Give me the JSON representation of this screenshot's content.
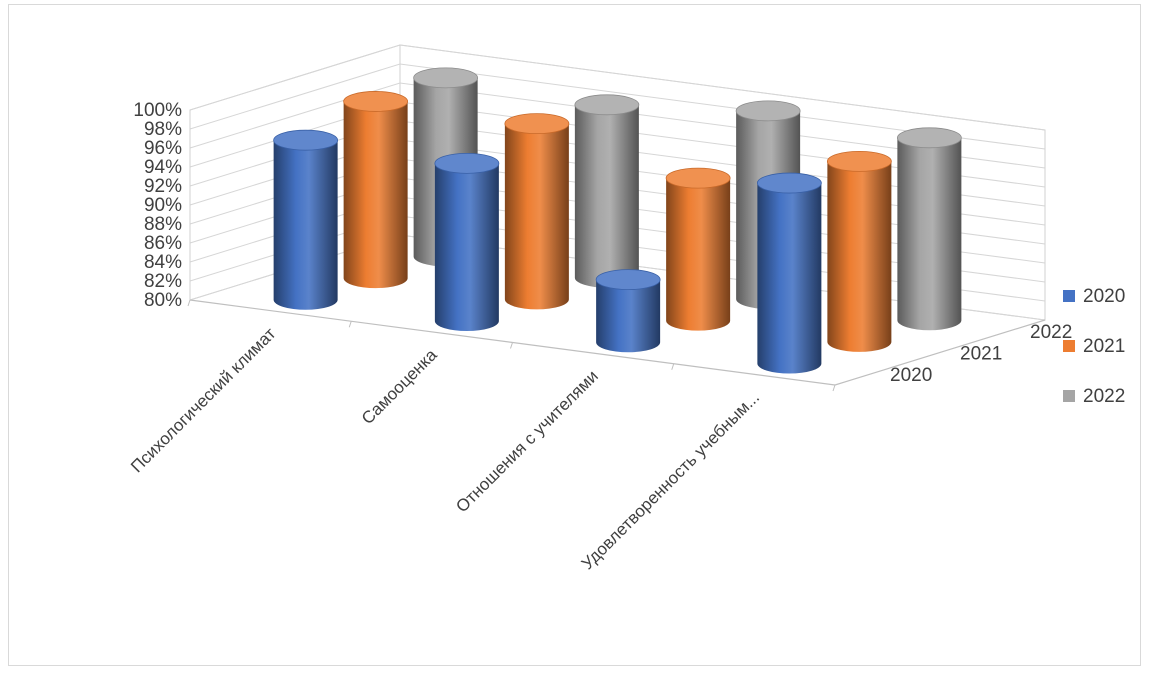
{
  "chart_data": {
    "type": "bar",
    "subtype": "3d-cylinder",
    "title": "",
    "categories": [
      "Психологический климат",
      "Самооценка",
      "Отношения с учителями",
      "Удовлетворенность учебным..."
    ],
    "series": [
      {
        "name": "2020",
        "color": "#4472C4",
        "values": [
          0.968,
          0.966,
          0.866,
          0.99
        ]
      },
      {
        "name": "2021",
        "color": "#ED7D31",
        "values": [
          0.986,
          0.985,
          0.95,
          0.99
        ]
      },
      {
        "name": "2022",
        "color": "#A5A5A5",
        "values": [
          0.988,
          0.982,
          0.998,
          0.992
        ]
      }
    ],
    "depth_labels": [
      "2022",
      "2021",
      "2020"
    ],
    "y_ticks": [
      "100%",
      "98%",
      "96%",
      "94%",
      "92%",
      "90%",
      "88%",
      "86%",
      "84%",
      "82%",
      "80%"
    ],
    "ylim": [
      0.8,
      1.0
    ],
    "ylabel": "",
    "xlabel": "",
    "grid": true,
    "legend_position": "right",
    "legend": [
      "2020",
      "2021",
      "2022"
    ]
  }
}
